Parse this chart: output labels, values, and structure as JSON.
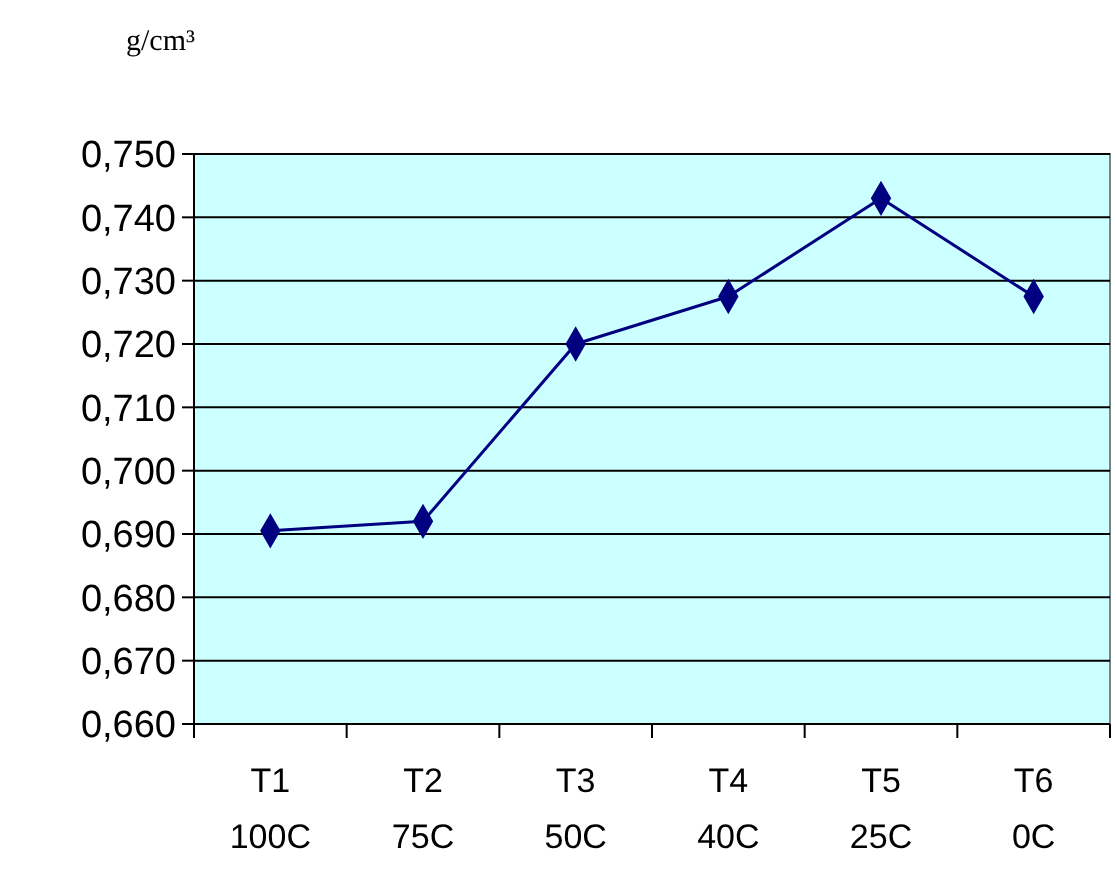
{
  "chart_data": {
    "type": "line",
    "ylabel": "g/cm³",
    "categories": [
      "T1\n100C",
      "T2\n75C",
      "T3\n50C",
      "T4\n40C",
      "T5\n25C",
      "T6\n0C"
    ],
    "series": [
      {
        "color": "#000080",
        "values": [
          0.6905,
          0.692,
          0.72,
          0.7275,
          0.743,
          0.7275
        ]
      }
    ],
    "ylim": [
      0.66,
      0.75
    ],
    "yticks": [
      {
        "value": 0.66,
        "label": "0,660"
      },
      {
        "value": 0.67,
        "label": "0,670"
      },
      {
        "value": 0.68,
        "label": "0,680"
      },
      {
        "value": 0.69,
        "label": "0,690"
      },
      {
        "value": 0.7,
        "label": "0,700"
      },
      {
        "value": 0.71,
        "label": "0,710"
      },
      {
        "value": 0.72,
        "label": "0,720"
      },
      {
        "value": 0.73,
        "label": "0,730"
      },
      {
        "value": 0.74,
        "label": "0,740"
      },
      {
        "value": 0.75,
        "label": "0,750"
      }
    ],
    "grid": "y",
    "marker": "diamond",
    "line_style": "solid"
  }
}
